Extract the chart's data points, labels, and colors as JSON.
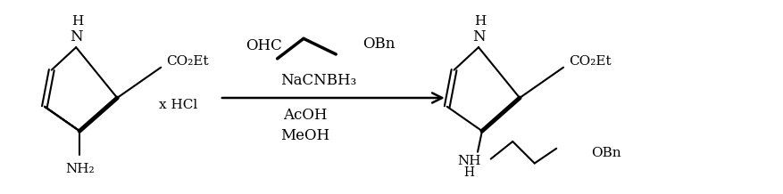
{
  "bg_color": "#ffffff",
  "line_color": "#000000",
  "figsize": [
    8.77,
    2.18
  ],
  "dpi": 100,
  "left_h": "H",
  "left_n": "N",
  "left_co2et": "CO₂Et",
  "left_nh2": "NH₂",
  "xhcl": "x HCl",
  "reagent_ohc": "OHC",
  "reagent_obn_top": "OBn",
  "reagent_nacnbh3": "NaCNBH₃",
  "reagent_acoh": "AcOH",
  "reagent_meoh": "MeOH",
  "right_h": "H",
  "right_n": "N",
  "right_co2et": "CO₂Et",
  "right_nh": "NH",
  "right_hh": "H",
  "right_obn": "OBn"
}
